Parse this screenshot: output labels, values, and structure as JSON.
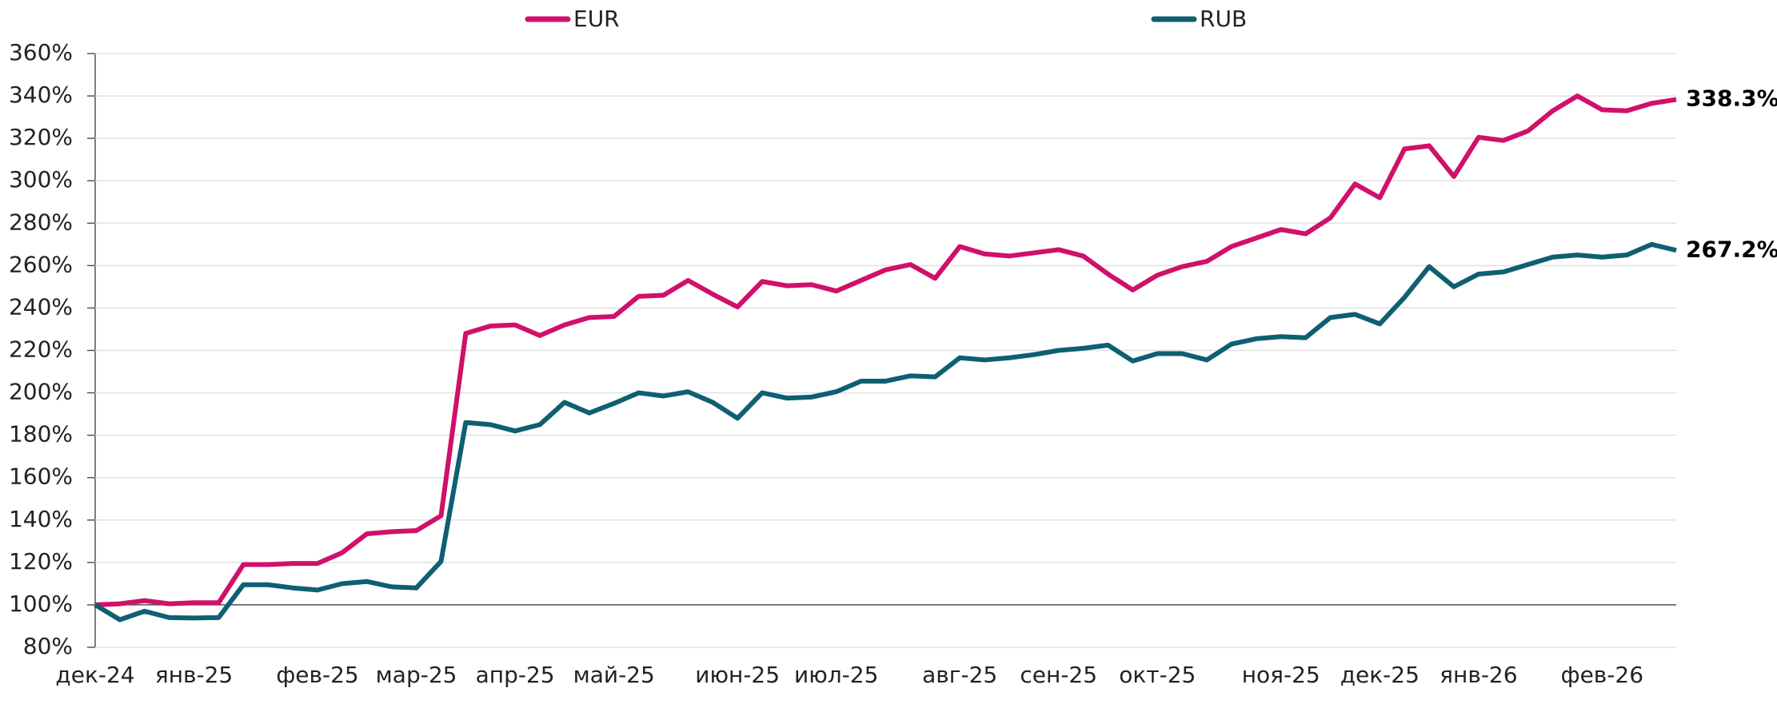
{
  "chart_data": {
    "type": "line",
    "categories": [
      "дек-24",
      null,
      null,
      null,
      "янв-25",
      null,
      null,
      null,
      null,
      "фев-25",
      null,
      null,
      null,
      "мар-25",
      null,
      null,
      null,
      "апр-25",
      null,
      null,
      null,
      "май-25",
      null,
      null,
      null,
      null,
      "июн-25",
      null,
      null,
      null,
      "июл-25",
      null,
      null,
      null,
      null,
      "авг-25",
      null,
      null,
      null,
      "сен-25",
      null,
      null,
      null,
      "окт-25",
      null,
      null,
      null,
      null,
      "ноя-25",
      null,
      null,
      null,
      "дек-25",
      null,
      null,
      null,
      "янв-26",
      null,
      null,
      null,
      null,
      "фев-26",
      null,
      null,
      null
    ],
    "series": [
      {
        "name": "EUR",
        "color": "#d0106a",
        "end_label": "338.3%",
        "values": [
          100,
          100.5,
          102,
          100.5,
          101,
          101,
          119,
          119,
          119.5,
          119.5,
          124.6,
          133.5,
          134.5,
          135,
          142,
          228,
          231.5,
          232,
          227,
          232,
          235.5,
          236,
          245.5,
          246,
          253,
          246.5,
          240.5,
          252.5,
          250.5,
          251,
          248,
          253,
          258,
          260.5,
          254,
          269,
          265.5,
          264.5,
          266,
          267.5,
          264.5,
          256,
          248.5,
          255.5,
          259.5,
          262,
          269,
          273,
          277,
          275,
          282.5,
          298.5,
          292,
          315,
          316.5,
          302,
          320.5,
          319,
          323.5,
          333,
          340,
          333.5,
          333,
          336.5,
          338.3
        ]
      },
      {
        "name": "RUB",
        "color": "#0f5f72",
        "end_label": "267.2%",
        "values": [
          100,
          93,
          97,
          94,
          93.8,
          94,
          109.5,
          109.5,
          108,
          107,
          110,
          111,
          108.5,
          108,
          120.5,
          186,
          185,
          182,
          185,
          195.5,
          190.5,
          195,
          200,
          198.5,
          200.5,
          195.5,
          188,
          200,
          197.5,
          198,
          200.5,
          205.5,
          205.5,
          208,
          207.5,
          216.5,
          215.5,
          216.5,
          218,
          220,
          221,
          222.5,
          215,
          218.5,
          218.5,
          215.5,
          223,
          225.5,
          226.5,
          226,
          235.5,
          237,
          232.5,
          245,
          259.5,
          250,
          256,
          257,
          260.5,
          264,
          265,
          264,
          265,
          270,
          267.2
        ]
      }
    ],
    "ylim": [
      80,
      360
    ],
    "yticks": [
      {
        "value": 80,
        "label": "80%"
      },
      {
        "value": 100,
        "label": "100%"
      },
      {
        "value": 120,
        "label": "120%"
      },
      {
        "value": 140,
        "label": "140%"
      },
      {
        "value": 160,
        "label": "160%"
      },
      {
        "value": 180,
        "label": "180%"
      },
      {
        "value": 200,
        "label": "200%"
      },
      {
        "value": 220,
        "label": "220%"
      },
      {
        "value": 240,
        "label": "240%"
      },
      {
        "value": 260,
        "label": "260%"
      },
      {
        "value": 280,
        "label": "280%"
      },
      {
        "value": 300,
        "label": "300%"
      },
      {
        "value": 320,
        "label": "320%"
      },
      {
        "value": 340,
        "label": "340%"
      },
      {
        "value": 360,
        "label": "360%"
      }
    ],
    "hline": 100,
    "grid": true,
    "legend": "top"
  }
}
